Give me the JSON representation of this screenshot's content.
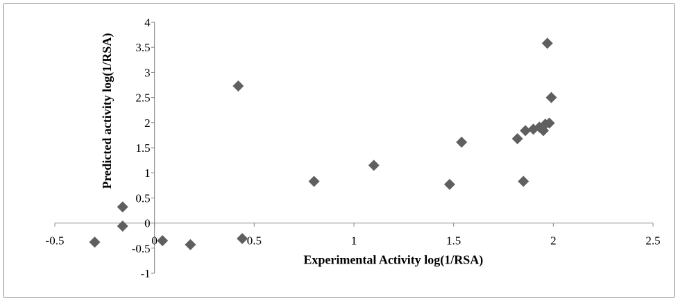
{
  "chart_data": {
    "type": "scatter",
    "title": "",
    "xlabel": "Experimental Activity log(1/RSA)",
    "ylabel": "Predicted activity log(1/RSA)",
    "xlim": [
      -0.5,
      2.5
    ],
    "ylim": [
      -1,
      4
    ],
    "x_ticks": [
      -0.5,
      0,
      0.5,
      1,
      1.5,
      2,
      2.5
    ],
    "y_ticks": [
      -1,
      -0.5,
      0,
      0.5,
      1,
      1.5,
      2,
      2.5,
      3,
      3.5,
      4
    ],
    "x_tick_labels": [
      "-0.5",
      "0",
      "0.5",
      "1",
      "1.5",
      "2",
      "2.5"
    ],
    "y_tick_labels": [
      "-1",
      "-0.5",
      "0",
      "0.5",
      "1",
      "1.5",
      "2",
      "2.5",
      "3",
      "3.5",
      "4"
    ],
    "grid": false,
    "legend": "none",
    "marker": "diamond",
    "marker_color": "#5f5f5f",
    "points": [
      {
        "x": -0.3,
        "y": -0.38
      },
      {
        "x": -0.16,
        "y": 0.32
      },
      {
        "x": -0.16,
        "y": -0.06
      },
      {
        "x": 0.04,
        "y": -0.35
      },
      {
        "x": 0.18,
        "y": -0.43
      },
      {
        "x": 0.44,
        "y": -0.31
      },
      {
        "x": 0.42,
        "y": 2.73
      },
      {
        "x": 0.8,
        "y": 0.83
      },
      {
        "x": 1.1,
        "y": 1.15
      },
      {
        "x": 1.48,
        "y": 0.77
      },
      {
        "x": 1.54,
        "y": 1.61
      },
      {
        "x": 1.82,
        "y": 1.68
      },
      {
        "x": 1.85,
        "y": 0.83
      },
      {
        "x": 1.86,
        "y": 1.84
      },
      {
        "x": 1.9,
        "y": 1.87
      },
      {
        "x": 1.93,
        "y": 1.91
      },
      {
        "x": 1.95,
        "y": 1.84
      },
      {
        "x": 1.96,
        "y": 1.97
      },
      {
        "x": 1.97,
        "y": 3.58
      },
      {
        "x": 1.98,
        "y": 1.99
      },
      {
        "x": 1.99,
        "y": 2.5
      }
    ]
  }
}
